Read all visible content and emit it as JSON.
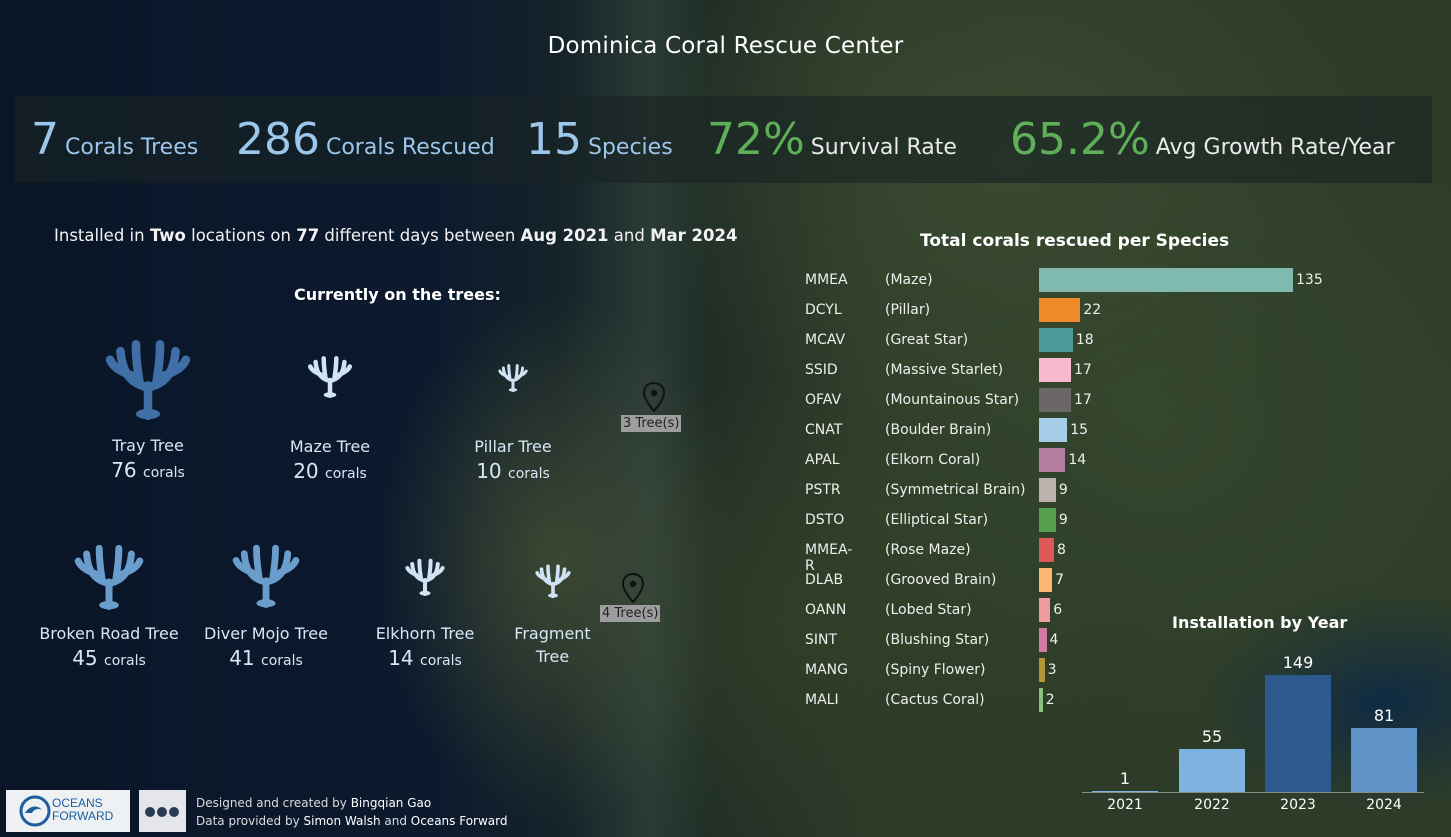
{
  "title": "Dominica Coral Rescue Center",
  "kpis": [
    {
      "value": "7",
      "label": "Corals Trees",
      "tone": "blue"
    },
    {
      "value": "286",
      "label": "Corals Rescued",
      "tone": "blue"
    },
    {
      "value": "15",
      "label": "Species",
      "tone": "blue"
    },
    {
      "value": "72%",
      "label": "Survival Rate",
      "tone": "green"
    },
    {
      "value": "65.2%",
      "label": "Avg Growth Rate/Year",
      "tone": "green"
    }
  ],
  "subtitle": {
    "p1": "Installed in ",
    "locations": "Two",
    "p2": " locations on ",
    "days": "77",
    "p3": " different days between ",
    "start": "Aug 2021",
    "p4": " and ",
    "end": "Mar 2024"
  },
  "trees_heading": "Currently on the trees:",
  "trees": [
    {
      "name": "Tray Tree",
      "count": "76",
      "unit": "corals",
      "icon": "coral-icon"
    },
    {
      "name": "Maze Tree",
      "count": "20",
      "unit": "corals",
      "icon": "coral-icon"
    },
    {
      "name": "Pillar Tree",
      "count": "10",
      "unit": "corals",
      "icon": "coral-icon"
    },
    {
      "name": "Broken Road Tree",
      "count": "45",
      "unit": "corals",
      "icon": "coral-icon"
    },
    {
      "name": "Diver Mojo Tree",
      "count": "41",
      "unit": "corals",
      "icon": "coral-icon"
    },
    {
      "name": "Elkhorn Tree",
      "count": "14",
      "unit": "corals",
      "icon": "coral-icon"
    },
    {
      "name": "Fragment Tree",
      "count": "",
      "unit": "",
      "icon": "coral-icon"
    }
  ],
  "map_markers": [
    {
      "label": "3 Tree(s)",
      "icon": "map-pin-icon"
    },
    {
      "label": "4 Tree(s)",
      "icon": "map-pin-icon"
    }
  ],
  "chart_data": [
    {
      "type": "bar",
      "orientation": "horizontal",
      "title": "Total corals rescued per Species",
      "categories": [
        "MMEA",
        "DCYL",
        "MCAV",
        "SSID",
        "OFAV",
        "CNAT",
        "APAL",
        "PSTR",
        "DSTO",
        "MMEA-R",
        "DLAB",
        "OANN",
        "SINT",
        "MANG",
        "MALI"
      ],
      "common_names": [
        "(Maze)",
        "(Pillar)",
        "(Great Star)",
        "(Massive Starlet)",
        "(Mountainous Star)",
        "(Boulder Brain)",
        "(Elkorn Coral)",
        "(Symmetrical Brain)",
        "(Elliptical Star)",
        "(Rose Maze)",
        "(Grooved Brain)",
        "(Lobed Star)",
        "(Blushing Star)",
        "(Spiny Flower)",
        "(Cactus Coral)"
      ],
      "values": [
        135,
        22,
        18,
        17,
        17,
        15,
        14,
        9,
        9,
        8,
        7,
        6,
        4,
        3,
        2
      ],
      "colors": [
        "#80b9ad",
        "#f08a28",
        "#4b9c99",
        "#f7b9cc",
        "#6c6767",
        "#a6cce8",
        "#b47ea0",
        "#b9b2ad",
        "#56a04b",
        "#df5858",
        "#fbb671",
        "#f19c9c",
        "#d17ba4",
        "#b4963a",
        "#88c379"
      ]
    },
    {
      "type": "bar",
      "title": "Installation by Year",
      "categories": [
        "2021",
        "2022",
        "2023",
        "2024"
      ],
      "values": [
        1,
        55,
        149,
        81
      ],
      "colors": [
        "#7fb3df",
        "#7fb3df",
        "#2c5a8e",
        "#5f93c8"
      ]
    }
  ],
  "credits": {
    "designed_prefix": "Designed and created by ",
    "designer": "Bingqian Gao",
    "data_prefix": "Data provided by ",
    "provider1": "Simon Walsh",
    "and": " and ",
    "provider2": "Oceans Forward"
  },
  "logo": {
    "line1": "OCEANS",
    "line2": "FORWARD"
  }
}
